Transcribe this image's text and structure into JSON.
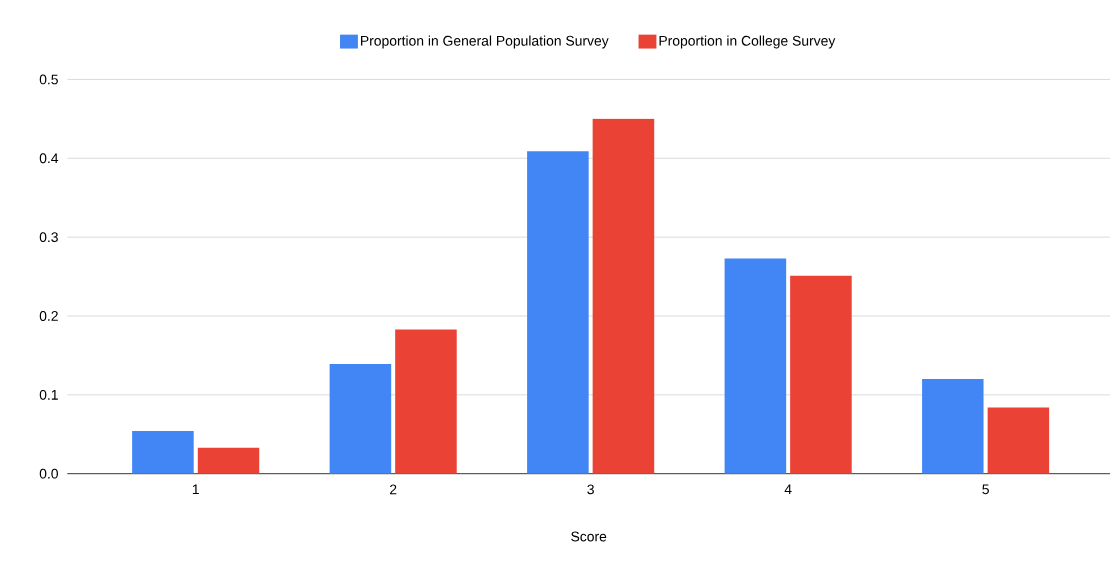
{
  "chart_data": {
    "type": "bar",
    "xlabel": "Score",
    "categories": [
      "1",
      "2",
      "3",
      "4",
      "5"
    ],
    "series": [
      {
        "name": "Proportion in General Population Survey",
        "color": "#4285f4",
        "values": [
          0.054,
          0.139,
          0.409,
          0.273,
          0.12
        ]
      },
      {
        "name": "Proportion in College Survey",
        "color": "#ea4335",
        "values": [
          0.033,
          0.183,
          0.45,
          0.251,
          0.084
        ]
      }
    ],
    "ylim": [
      0,
      0.5
    ],
    "yticks": [
      {
        "value": 0,
        "label": "0.0"
      },
      0.1,
      0.2,
      0.3,
      0.4,
      0.5
    ],
    "grid": "y",
    "legend": "top"
  }
}
